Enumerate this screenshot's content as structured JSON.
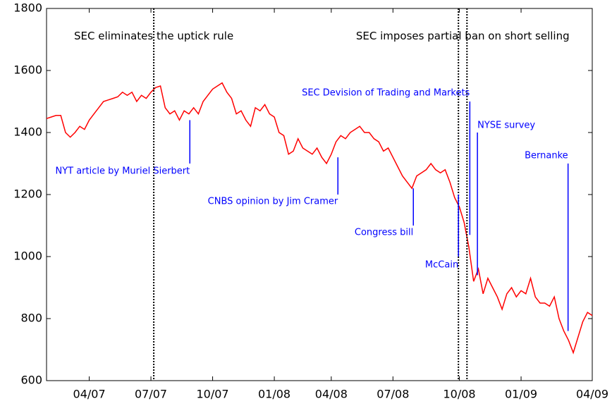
{
  "chart_data": {
    "type": "line",
    "categories": [
      null,
      null,
      null,
      null,
      null,
      null,
      null,
      null,
      null,
      "04/07",
      null,
      null,
      null,
      null,
      null,
      null,
      null,
      null,
      null,
      null,
      null,
      null,
      "07/07",
      null,
      null,
      null,
      null,
      null,
      null,
      null,
      null,
      null,
      null,
      null,
      null,
      "10/07",
      null,
      null,
      null,
      null,
      null,
      null,
      null,
      null,
      null,
      null,
      null,
      null,
      "01/08",
      null,
      null,
      null,
      null,
      null,
      null,
      null,
      null,
      null,
      null,
      null,
      "04/08",
      null,
      null,
      null,
      null,
      null,
      null,
      null,
      null,
      null,
      null,
      null,
      null,
      "07/08",
      null,
      null,
      null,
      null,
      null,
      null,
      null,
      null,
      null,
      null,
      null,
      null,
      null,
      "10/08",
      null,
      null,
      null,
      null,
      null,
      null,
      null,
      null,
      null,
      null,
      null,
      null,
      "01/09",
      null,
      null,
      null,
      null,
      null,
      null,
      null,
      null,
      null,
      null,
      null,
      null,
      null,
      null,
      "04/09"
    ],
    "series": [
      {
        "color": "#ff0000",
        "values": [
          1445,
          1450,
          1455,
          1455,
          1400,
          1385,
          1400,
          1420,
          1410,
          1440,
          1460,
          1480,
          1500,
          1505,
          1510,
          1515,
          1530,
          1520,
          1530,
          1500,
          1520,
          1510,
          1530,
          1545,
          1550,
          1480,
          1460,
          1470,
          1440,
          1470,
          1460,
          1480,
          1460,
          1500,
          1520,
          1540,
          1550,
          1560,
          1530,
          1510,
          1460,
          1470,
          1440,
          1420,
          1480,
          1470,
          1490,
          1460,
          1450,
          1400,
          1390,
          1330,
          1340,
          1380,
          1350,
          1340,
          1330,
          1350,
          1320,
          1300,
          1330,
          1370,
          1390,
          1380,
          1400,
          1410,
          1420,
          1400,
          1400,
          1380,
          1370,
          1340,
          1350,
          1320,
          1290,
          1260,
          1240,
          1220,
          1260,
          1270,
          1280,
          1300,
          1280,
          1270,
          1280,
          1240,
          1190,
          1160,
          1110,
          1030,
          920,
          960,
          880,
          930,
          900,
          870,
          830,
          880,
          900,
          870,
          890,
          880,
          930,
          870,
          850,
          850,
          840,
          870,
          800,
          760,
          730,
          690,
          740,
          790,
          820,
          810
        ]
      }
    ],
    "ylim": [
      600,
      1800
    ],
    "yticks": [
      600,
      800,
      1000,
      1200,
      1400,
      1600,
      1800
    ],
    "events": [
      {
        "text": "SEC eliminates the uptick rule",
        "x": [
          22.6
        ],
        "label_y": 1710
      },
      {
        "text": "SEC imposes partial ban on short selling",
        "x": [
          86.8,
          88.6
        ],
        "label_y": 1710
      }
    ],
    "annotations": [
      {
        "text": "NYT article by Muriel Sierbert",
        "x": 30.2,
        "y1": 1440,
        "y2": 1300,
        "label_y": 1275,
        "align": "end"
      },
      {
        "text": "CNBS opinion by Jim Cramer",
        "x": 61.4,
        "y1": 1320,
        "y2": 1200,
        "label_y": 1177,
        "align": "end"
      },
      {
        "text": "Congress bill",
        "x": 77.3,
        "y1": 1220,
        "y2": 1100,
        "label_y": 1077,
        "align": "end"
      },
      {
        "text": "McCain",
        "x": 86.8,
        "y1": 1200,
        "y2": 1000,
        "label_y": 973,
        "align": "end"
      },
      {
        "text": "SEC Devision of Trading and Markets",
        "x": 89.2,
        "y1": 1500,
        "y2": 1070,
        "label_y": 1527,
        "align": "end"
      },
      {
        "text": "NYSE survey",
        "x": 90.8,
        "y1": 1400,
        "y2": 940,
        "label_y": 1423,
        "align": "start"
      },
      {
        "text": "Bernanke",
        "x": 109.9,
        "y1": 1300,
        "y2": 760,
        "label_y": 1325,
        "align": "end"
      }
    ]
  }
}
